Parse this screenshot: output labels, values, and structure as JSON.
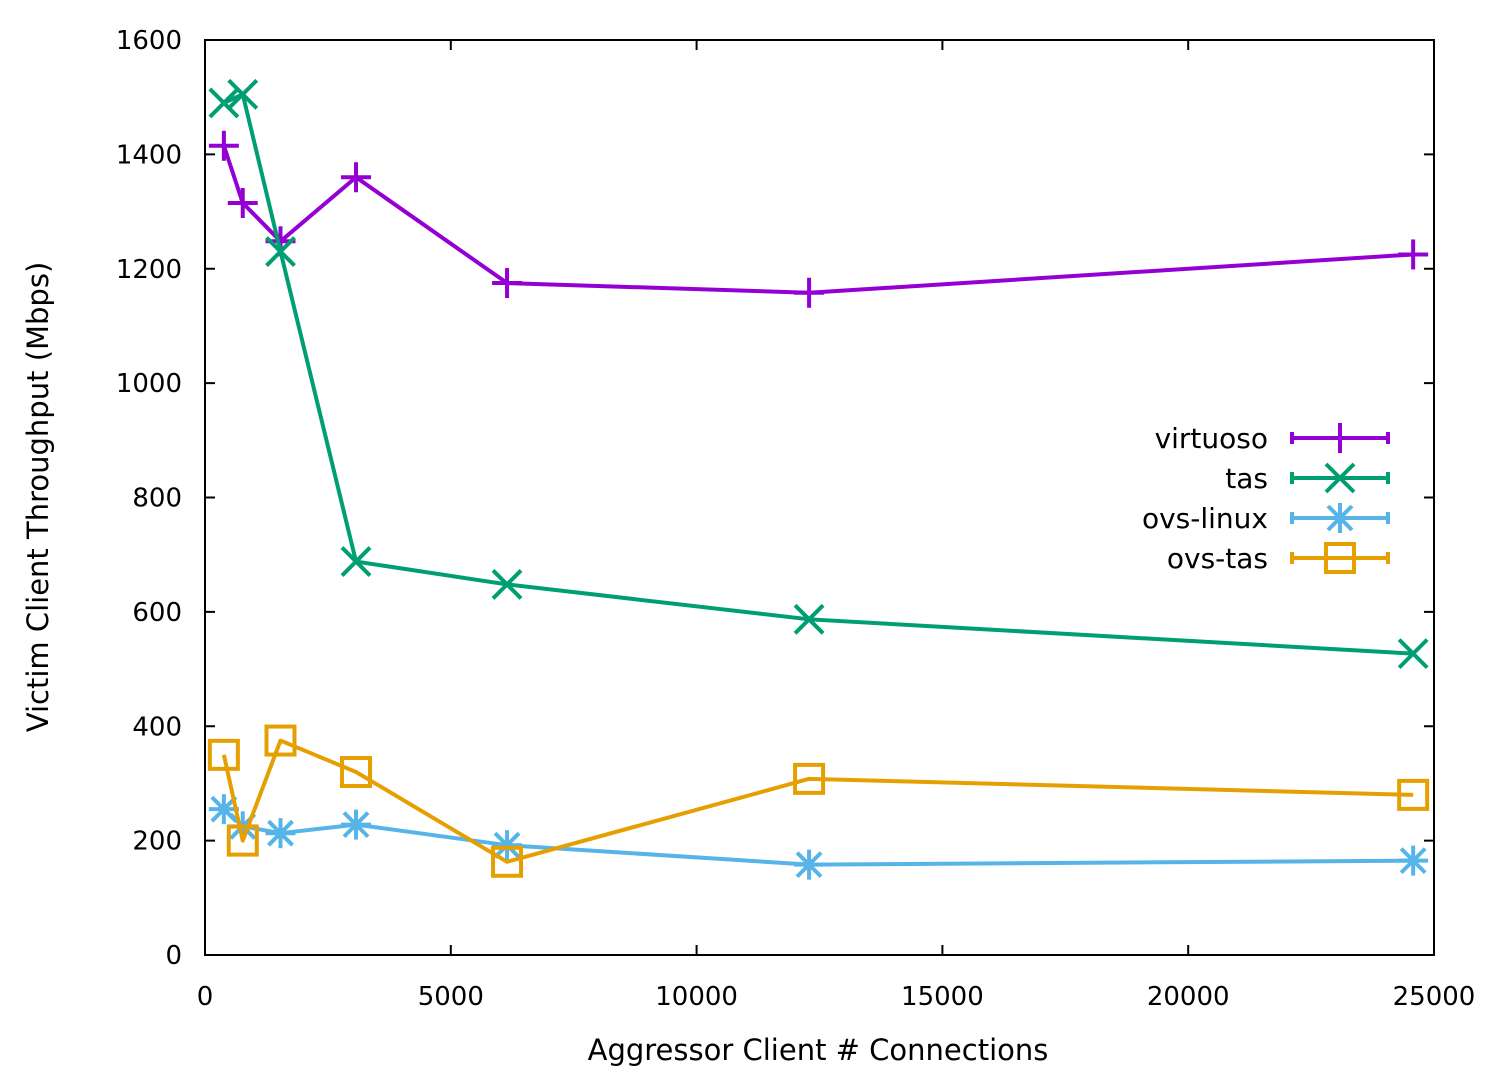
{
  "chart_data": {
    "type": "line",
    "title": "",
    "xlabel": "Aggressor Client # Connections",
    "ylabel": "Victim Client Throughput (Mbps)",
    "xlim": [
      0,
      25000
    ],
    "ylim": [
      0,
      1600
    ],
    "xticks": [
      0,
      5000,
      10000,
      15000,
      20000,
      25000
    ],
    "yticks": [
      0,
      200,
      400,
      600,
      800,
      1000,
      1200,
      1400,
      1600
    ],
    "grid": false,
    "legend_position": "right",
    "series": [
      {
        "name": "virtuoso",
        "color": "#9400d3",
        "marker": "plus",
        "x": [
          384,
          768,
          1536,
          3072,
          6144,
          12288,
          24576
        ],
        "y": [
          1415,
          1315,
          1248,
          1360,
          1175,
          1158,
          1225
        ]
      },
      {
        "name": "tas",
        "color": "#009e73",
        "marker": "cross",
        "x": [
          384,
          768,
          1536,
          3072,
          6144,
          12288,
          24576
        ],
        "y": [
          1490,
          1505,
          1230,
          688,
          648,
          587,
          527
        ]
      },
      {
        "name": "ovs-linux",
        "color": "#56b4e9",
        "marker": "star",
        "x": [
          384,
          768,
          1536,
          3072,
          6144,
          12288,
          24576
        ],
        "y": [
          255,
          225,
          213,
          228,
          192,
          158,
          165
        ]
      },
      {
        "name": "ovs-tas",
        "color": "#e69f00",
        "marker": "square",
        "x": [
          384,
          768,
          1536,
          3072,
          6144,
          12288,
          24576
        ],
        "y": [
          350,
          200,
          375,
          320,
          163,
          308,
          280
        ]
      }
    ]
  }
}
